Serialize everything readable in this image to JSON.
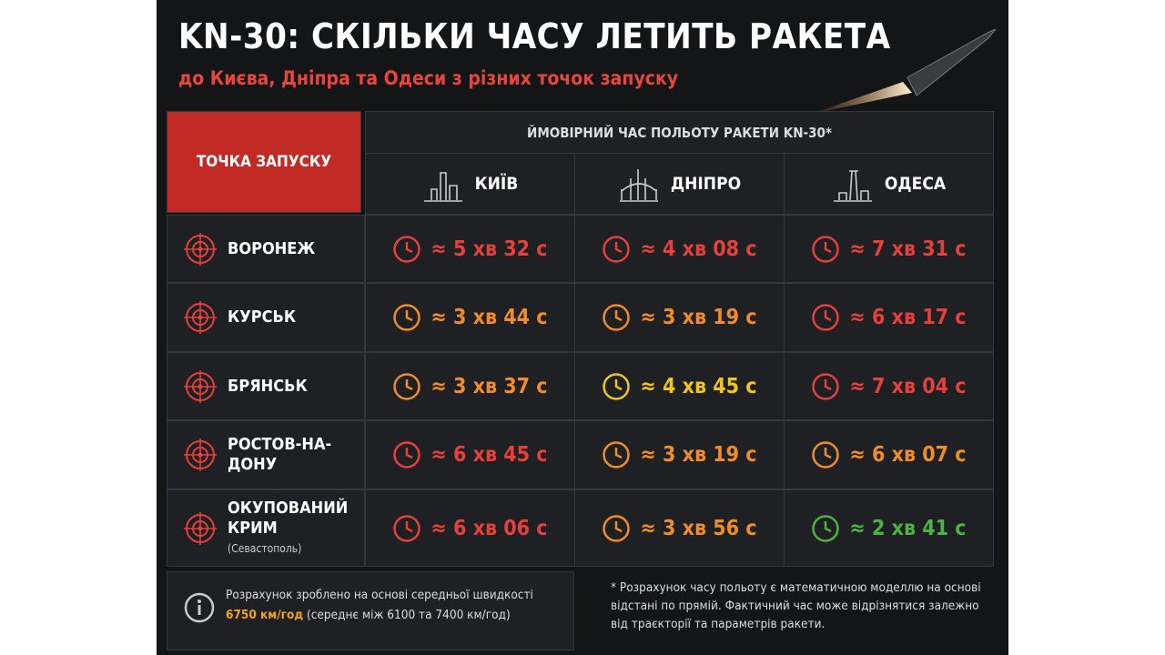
{
  "header": {
    "title": "KN-30: СКІЛЬКИ ЧАСУ ЛЕТИТЬ РАКЕТА",
    "subtitle": "до Києва, Дніпра та Одеси з різних точок запуску"
  },
  "table": {
    "corner": "ТОЧКА ЗАПУСКУ",
    "group_header": "ЙМОВІРНИЙ ЧАС ПОЛЬОТУ РАКЕТИ KN-30*",
    "columns": [
      "КИЇВ",
      "ДНІПРО",
      "ОДЕСА"
    ],
    "rows": [
      {
        "origin": "ВОРОНЕЖ",
        "cells": [
          {
            "text": "≈ 5 хв 32 с",
            "color": "#e5403a"
          },
          {
            "text": "≈ 4 хв 08 с",
            "color": "#e5403a"
          },
          {
            "text": "≈ 7 хв 31 с",
            "color": "#e5403a"
          }
        ]
      },
      {
        "origin": "КУРСЬК",
        "cells": [
          {
            "text": "≈ 3 хв 44 с",
            "color": "#f08c2c"
          },
          {
            "text": "≈ 3 хв 19 с",
            "color": "#f08c2c"
          },
          {
            "text": "≈ 6 хв 17 с",
            "color": "#e5403a"
          }
        ]
      },
      {
        "origin": "БРЯНСЬК",
        "cells": [
          {
            "text": "≈ 3 хв 37 с",
            "color": "#f08c2c"
          },
          {
            "text": "≈ 4 хв 45 с",
            "color": "#f2c51e"
          },
          {
            "text": "≈ 7 хв 04 с",
            "color": "#e5403a"
          }
        ]
      },
      {
        "origin": "РОСТОВ-НА-ДОНУ",
        "cells": [
          {
            "text": "≈ 6 хв 45 с",
            "color": "#e5403a"
          },
          {
            "text": "≈ 3 хв 19 с",
            "color": "#f08c2c"
          },
          {
            "text": "≈ 6 хв 07 с",
            "color": "#f08c2c"
          }
        ]
      },
      {
        "origin": "ОКУПОВАНИЙ КРИМ",
        "note": "(Севастополь)",
        "cells": [
          {
            "text": "≈ 6 хв 06 с",
            "color": "#e5403a"
          },
          {
            "text": "≈ 3 хв 56 с",
            "color": "#f08c2c"
          },
          {
            "text": "≈ 2 хв 41 с",
            "color": "#4fb244"
          }
        ]
      }
    ]
  },
  "footer": {
    "basis": "Розрахунок зроблено на основі середньої швидкості",
    "speed": "6750 км/год",
    "range": "(середнє між 6100 та 7400 км/год)",
    "disclaimer": "* Розрахунок часу польоту є математичною моделлю на основі відстані по прямій. Фактичний час може відрізнятися залежно від траєкторії та параметрів ракети."
  }
}
